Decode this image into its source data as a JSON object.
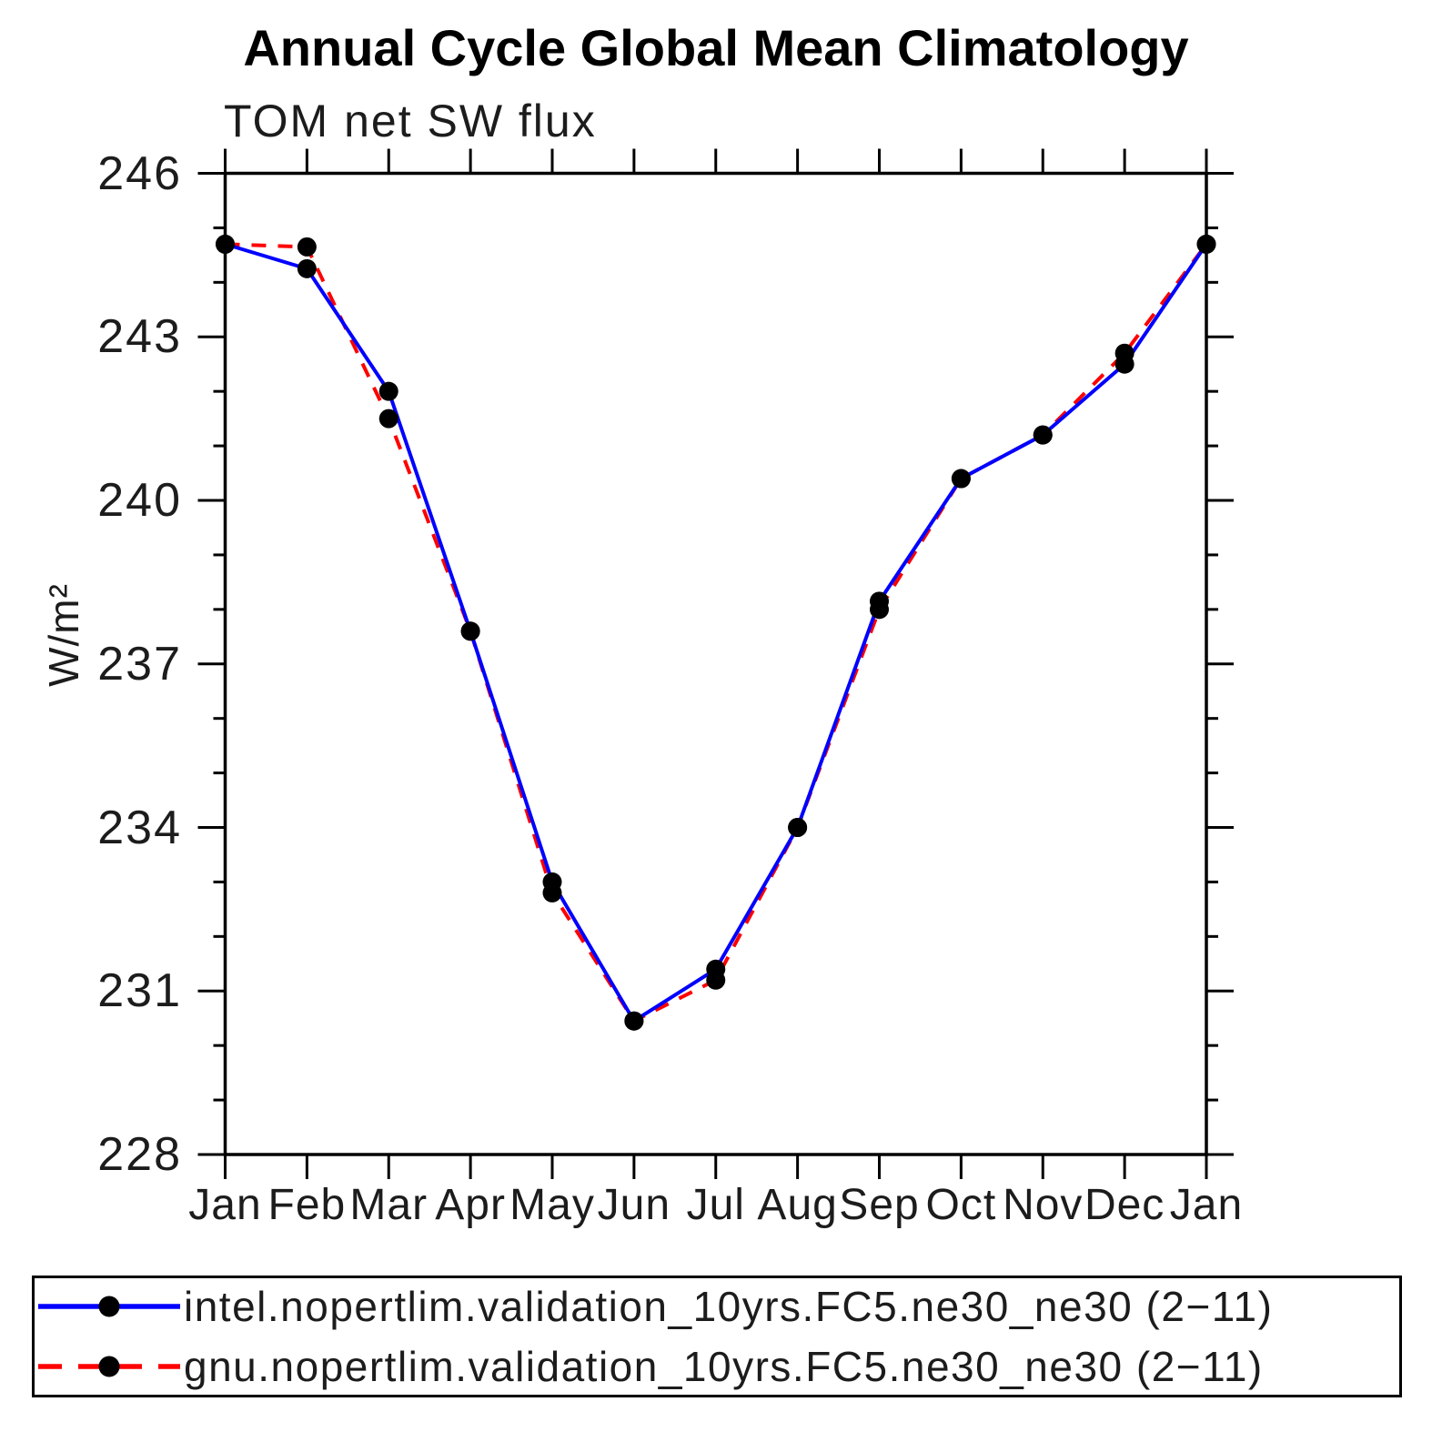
{
  "title": "Annual Cycle Global Mean Climatology",
  "subtitle": "TOM net SW flux",
  "ylabel": "W/m²",
  "legend": {
    "marker_color": "#000000",
    "entries": [
      {
        "label": "intel.nopertlim.validation_10yrs.FC5.ne30_ne30 (2−11)",
        "color": "#0000ff",
        "style": "solid"
      },
      {
        "label": "gnu.nopertlim.validation_10yrs.FC5.ne30_ne30 (2−11)",
        "color": "#ff0000",
        "style": "dashed"
      }
    ]
  },
  "chart_data": {
    "type": "line",
    "title": "Annual Cycle Global Mean Climatology",
    "subtitle": "TOM net SW flux",
    "ylabel": "W/m²",
    "x_categories": [
      "Jan",
      "Feb",
      "Mar",
      "Apr",
      "May",
      "Jun",
      "Jul",
      "Aug",
      "Sep",
      "Oct",
      "Nov",
      "Dec",
      "Jan"
    ],
    "ylim": [
      228,
      246
    ],
    "yticks_major": [
      228,
      231,
      234,
      237,
      240,
      243,
      246
    ],
    "ytick_minor_step": 1,
    "grid": false,
    "legend_position": "bottom",
    "marker": {
      "shape": "circle",
      "color": "#000000"
    },
    "series": [
      {
        "name": "intel.nopertlim.validation_10yrs.FC5.ne30_ne30 (2−11)",
        "color": "#0000ff",
        "dash": "solid",
        "values": [
          244.7,
          244.25,
          242.0,
          237.6,
          233.0,
          230.45,
          231.4,
          234.0,
          238.15,
          240.4,
          241.2,
          242.5,
          244.7
        ]
      },
      {
        "name": "gnu.nopertlim.validation_10yrs.FC5.ne30_ne30 (2−11)",
        "color": "#ff0000",
        "dash": "dashed",
        "values": [
          244.7,
          244.65,
          241.5,
          237.6,
          232.8,
          230.45,
          231.2,
          234.0,
          238.0,
          240.4,
          241.2,
          242.7,
          244.7
        ]
      }
    ]
  }
}
